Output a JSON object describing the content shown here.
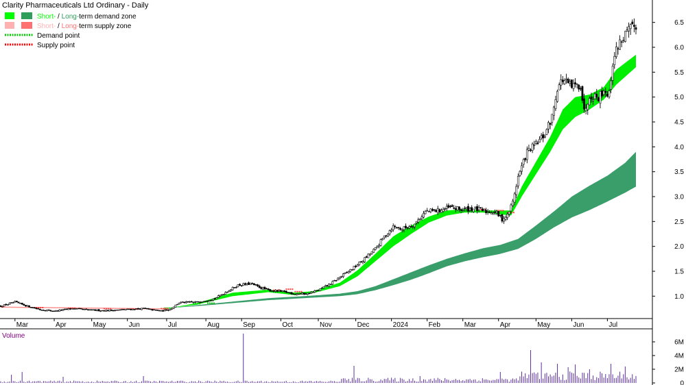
{
  "chart_data": {
    "type": "candlestick",
    "title": "Clarity Pharmaceuticals Ltd Ordinary - Daily",
    "legend": [
      {
        "part1": "Short-",
        "sep": " / ",
        "part2": "Long-",
        "rest": "term demand zone",
        "color1": "#00ff00",
        "color2": "#2e9e5b",
        "kind": "box"
      },
      {
        "part1": "Short-",
        "sep": " / ",
        "part2": "Long-",
        "rest": "term supply zone",
        "color1": "#ffb0b0",
        "color2": "#ff7070",
        "kind": "box"
      },
      {
        "label": "Demand point",
        "color": "#00cc00",
        "kind": "dots"
      },
      {
        "label": "Supply point",
        "color": "#ff0000",
        "kind": "dots"
      }
    ],
    "x_labels": [
      "Mar",
      "Apr",
      "May",
      "Jun",
      "Jul",
      "Aug",
      "Sep",
      "Oct",
      "Nov",
      "Dec",
      "2024",
      "Feb",
      "Mar",
      "Apr",
      "May",
      "Jun",
      "Jul"
    ],
    "x_label_index": [
      8,
      30,
      51,
      71,
      93,
      115,
      135,
      157,
      178,
      199,
      219,
      239,
      259,
      279,
      300,
      320,
      340
    ],
    "y_ticks": [
      "6.5",
      "6.0",
      "5.5",
      "5.0",
      "4.5",
      "4.0",
      "3.5",
      "3.0",
      "2.5",
      "2.0",
      "1.5",
      "1.0"
    ],
    "y_tick_values": [
      6.5,
      6.0,
      5.5,
      5.0,
      4.5,
      4.0,
      3.5,
      3.0,
      2.5,
      2.0,
      1.5,
      1.0
    ],
    "ylim": [
      0.55,
      6.95
    ],
    "close_anchors": [
      [
        0,
        0.8
      ],
      [
        8,
        0.88
      ],
      [
        15,
        0.8
      ],
      [
        22,
        0.73
      ],
      [
        30,
        0.7
      ],
      [
        40,
        0.75
      ],
      [
        50,
        0.72
      ],
      [
        60,
        0.71
      ],
      [
        70,
        0.73
      ],
      [
        80,
        0.75
      ],
      [
        90,
        0.7
      ],
      [
        95,
        0.74
      ],
      [
        100,
        0.87
      ],
      [
        110,
        0.88
      ],
      [
        120,
        0.95
      ],
      [
        127,
        1.1
      ],
      [
        133,
        1.22
      ],
      [
        140,
        1.25
      ],
      [
        145,
        1.18
      ],
      [
        150,
        1.12
      ],
      [
        155,
        1.1
      ],
      [
        160,
        1.08
      ],
      [
        165,
        1.05
      ],
      [
        172,
        1.05
      ],
      [
        178,
        1.12
      ],
      [
        185,
        1.25
      ],
      [
        190,
        1.38
      ],
      [
        197,
        1.55
      ],
      [
        203,
        1.72
      ],
      [
        210,
        1.95
      ],
      [
        215,
        2.2
      ],
      [
        220,
        2.4
      ],
      [
        225,
        2.35
      ],
      [
        232,
        2.45
      ],
      [
        238,
        2.7
      ],
      [
        245,
        2.72
      ],
      [
        252,
        2.78
      ],
      [
        258,
        2.74
      ],
      [
        265,
        2.76
      ],
      [
        272,
        2.7
      ],
      [
        277,
        2.7
      ],
      [
        281,
        2.55
      ],
      [
        284,
        2.62
      ],
      [
        287,
        2.9
      ],
      [
        290,
        3.4
      ],
      [
        295,
        3.9
      ],
      [
        300,
        4.05
      ],
      [
        305,
        4.25
      ],
      [
        309,
        4.6
      ],
      [
        312,
        5.2
      ],
      [
        315,
        5.35
      ],
      [
        320,
        5.2
      ],
      [
        325,
        5.25
      ],
      [
        327,
        4.7
      ],
      [
        330,
        5.05
      ],
      [
        335,
        5.0
      ],
      [
        338,
        5.15
      ],
      [
        341,
        5.05
      ],
      [
        343,
        5.7
      ],
      [
        346,
        6.05
      ],
      [
        350,
        6.25
      ],
      [
        353,
        6.35
      ],
      [
        356,
        6.45
      ]
    ],
    "short_zone": [
      [
        94,
        0.76,
        0.76
      ],
      [
        110,
        0.83,
        0.86
      ],
      [
        130,
        1.0,
        1.07
      ],
      [
        150,
        1.08,
        1.13
      ],
      [
        165,
        1.02,
        1.07
      ],
      [
        175,
        1.06,
        1.1
      ],
      [
        190,
        1.2,
        1.27
      ],
      [
        200,
        1.4,
        1.52
      ],
      [
        210,
        1.7,
        1.85
      ],
      [
        220,
        2.0,
        2.2
      ],
      [
        230,
        2.25,
        2.42
      ],
      [
        240,
        2.48,
        2.6
      ],
      [
        250,
        2.62,
        2.72
      ],
      [
        260,
        2.68,
        2.75
      ],
      [
        270,
        2.68,
        2.72
      ],
      [
        278,
        2.65,
        2.72
      ],
      [
        286,
        2.62,
        2.72
      ],
      [
        292,
        3.0,
        3.2
      ],
      [
        300,
        3.45,
        3.7
      ],
      [
        308,
        3.9,
        4.2
      ],
      [
        315,
        4.35,
        4.75
      ],
      [
        322,
        4.6,
        5.0
      ],
      [
        330,
        4.75,
        5.05
      ],
      [
        338,
        4.95,
        5.2
      ],
      [
        345,
        5.25,
        5.55
      ],
      [
        356,
        5.6,
        5.85
      ]
    ],
    "long_zone": [
      [
        94,
        0.76,
        0.76
      ],
      [
        110,
        0.8,
        0.82
      ],
      [
        130,
        0.86,
        0.89
      ],
      [
        150,
        0.92,
        0.96
      ],
      [
        170,
        0.96,
        1.0
      ],
      [
        190,
        1.0,
        1.05
      ],
      [
        200,
        1.04,
        1.1
      ],
      [
        210,
        1.12,
        1.2
      ],
      [
        220,
        1.22,
        1.34
      ],
      [
        230,
        1.33,
        1.48
      ],
      [
        240,
        1.46,
        1.62
      ],
      [
        250,
        1.6,
        1.75
      ],
      [
        260,
        1.7,
        1.86
      ],
      [
        270,
        1.78,
        1.96
      ],
      [
        280,
        1.85,
        2.03
      ],
      [
        290,
        1.95,
        2.15
      ],
      [
        300,
        2.15,
        2.42
      ],
      [
        310,
        2.38,
        2.7
      ],
      [
        320,
        2.58,
        3.0
      ],
      [
        330,
        2.73,
        3.22
      ],
      [
        340,
        2.9,
        3.42
      ],
      [
        350,
        3.08,
        3.68
      ],
      [
        356,
        3.2,
        3.9
      ]
    ],
    "demand_points": [
      [
        94,
        0.76
      ],
      [
        110,
        0.85
      ],
      [
        118,
        0.86
      ]
    ],
    "supply_points": [
      [
        0,
        0.79
      ],
      [
        22,
        0.77
      ],
      [
        40,
        0.76
      ],
      [
        60,
        0.75
      ],
      [
        75,
        0.74
      ],
      [
        92,
        0.75
      ],
      [
        155,
        1.12
      ],
      [
        162,
        1.14
      ],
      [
        167,
        1.09
      ],
      [
        270,
        2.74
      ],
      [
        280,
        2.72
      ],
      [
        286,
        2.68
      ]
    ],
    "volume": {
      "label": "Volume",
      "y_ticks": [
        "6M",
        "4M",
        "2M",
        "0"
      ],
      "y_tick_values": [
        6,
        4,
        2,
        0
      ],
      "ylim": [
        0,
        7.2
      ],
      "unit": "M",
      "bar_color": "#5a2ea0",
      "spikes": [
        [
          6,
          1.2
        ],
        [
          12,
          1.6
        ],
        [
          35,
          0.9
        ],
        [
          80,
          1.0
        ],
        [
          136,
          7.2
        ],
        [
          198,
          2.5
        ],
        [
          235,
          1.0
        ],
        [
          280,
          1.6
        ],
        [
          297,
          4.8
        ],
        [
          303,
          3.0
        ],
        [
          312,
          2.8
        ],
        [
          318,
          2.3
        ],
        [
          322,
          2.7
        ],
        [
          330,
          2.0
        ],
        [
          342,
          2.8
        ],
        [
          350,
          2.4
        ]
      ]
    },
    "n_bars": 357,
    "colors": {
      "candle": "#000000",
      "up_fill": "#ffffff",
      "down_fill": "#000000",
      "short_zone": "#00ee00",
      "long_zone": "#3a9e6a",
      "supply_zone": "#ff9090",
      "axis": "#000000"
    }
  }
}
